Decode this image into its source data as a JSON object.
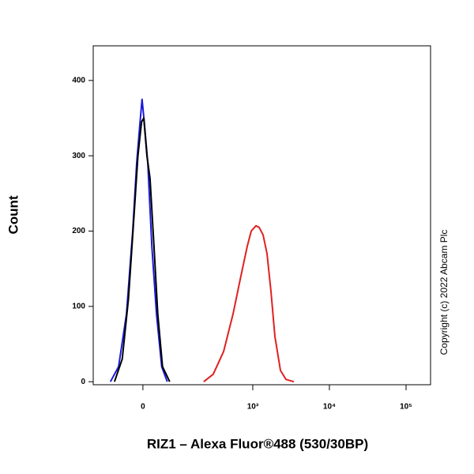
{
  "chart_data": {
    "type": "line",
    "x_label": "RIZ1 – Alexa Fluor®488 (530/30BP)",
    "y_label": "Count",
    "annotation": "Copyright (c) 2022 Abcam Plc",
    "xscale": "biexponential",
    "xlim": [
      -156,
      208700
    ],
    "ylim": [
      -4,
      446
    ],
    "xticks": [
      {
        "value": 0,
        "label": "0"
      },
      {
        "value": 1000,
        "label": "10³"
      },
      {
        "value": 10000,
        "label": "10⁴"
      },
      {
        "value": 100000,
        "label": "10⁵"
      }
    ],
    "yticks": [
      0,
      100,
      200,
      300,
      400
    ],
    "series": [
      {
        "color": "#1a1adc",
        "x": [
          -84,
          -59,
          -38,
          -23,
          -14,
          -7,
          -2,
          3,
          11,
          20,
          31,
          44,
          59
        ],
        "values": [
          0,
          20,
          90,
          200,
          290,
          340,
          375,
          345,
          290,
          180,
          90,
          20,
          0
        ]
      },
      {
        "color": "#000000",
        "x": [
          -71,
          -49,
          -33,
          -20,
          -11,
          -3,
          2,
          9,
          16,
          25,
          34,
          46,
          66
        ],
        "values": [
          0,
          30,
          110,
          220,
          300,
          345,
          350,
          300,
          270,
          180,
          90,
          20,
          0
        ]
      },
      {
        "color": "#e02020",
        "x": [
          224,
          301,
          413,
          551,
          699,
          848,
          954,
          1101,
          1210,
          1363,
          1535,
          1729,
          1946,
          2298,
          2712,
          3440
        ],
        "values": [
          0,
          10,
          40,
          90,
          140,
          180,
          200,
          207,
          205,
          195,
          170,
          120,
          60,
          15,
          3,
          0
        ]
      }
    ]
  }
}
